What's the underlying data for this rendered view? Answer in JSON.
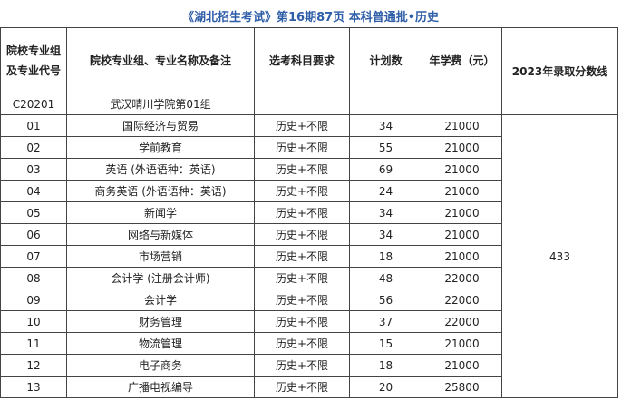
{
  "title": "《湖北招生考试》第16期87页 本科普通批•历史",
  "table": {
    "header": [
      "院校专业组及专业代号",
      "院校专业组、专业名称及备注",
      "选考科目要求",
      "计划数",
      "年学费（元）",
      "2023年录取分数线"
    ],
    "group": {
      "code": "C20201",
      "name": "武汉晴川学院第01组"
    },
    "score": "433",
    "rows": [
      [
        "01",
        "国际经济与贸易",
        "历史+不限",
        "34",
        "21000"
      ],
      [
        "02",
        "学前教育",
        "历史+不限",
        "55",
        "21000"
      ],
      [
        "03",
        "英语 (外语语种：英语)",
        "历史+不限",
        "69",
        "21000"
      ],
      [
        "04",
        "商务英语 (外语语种：英语)",
        "历史+不限",
        "24",
        "21000"
      ],
      [
        "05",
        "新闻学",
        "历史+不限",
        "34",
        "21000"
      ],
      [
        "06",
        "网络与新媒体",
        "历史+不限",
        "34",
        "21000"
      ],
      [
        "07",
        "市场营销",
        "历史+不限",
        "18",
        "21000"
      ],
      [
        "08",
        "会计学 (注册会计师)",
        "历史+不限",
        "48",
        "22000"
      ],
      [
        "09",
        "会计学",
        "历史+不限",
        "56",
        "22000"
      ],
      [
        "10",
        "财务管理",
        "历史+不限",
        "37",
        "22000"
      ],
      [
        "11",
        "物流管理",
        "历史+不限",
        "15",
        "21000"
      ],
      [
        "12",
        "电子商务",
        "历史+不限",
        "18",
        "21000"
      ],
      [
        "13",
        "广播电视编导",
        "历史+不限",
        "20",
        "25800"
      ]
    ]
  }
}
